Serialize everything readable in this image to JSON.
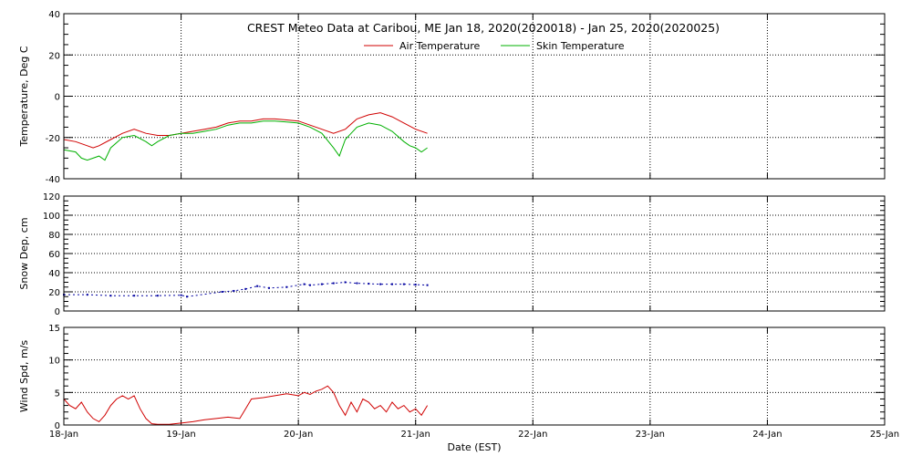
{
  "chart_data": {
    "type": "line",
    "title": "CREST Meteo Data at Caribou, ME   Jan 18, 2020(2020018) - Jan 25, 2020(2020025)",
    "xlabel": "Date (EST)",
    "x_ticks": [
      "18-Jan",
      "19-Jan",
      "20-Jan",
      "21-Jan",
      "22-Jan",
      "23-Jan",
      "24-Jan",
      "25-Jan"
    ],
    "xlim": [
      0,
      7
    ],
    "grid": true,
    "colors": {
      "air": "#d00000",
      "skin": "#00b000",
      "snow": "#0000a0",
      "wind": "#d00000"
    },
    "panels": [
      {
        "id": "temperature",
        "ylabel": "Temperature, Deg C",
        "ylim": [
          -40,
          40
        ],
        "y_ticks": [
          "-40",
          "-20",
          "0",
          "20",
          "40"
        ],
        "legend": [
          "Air Temperature",
          "Skin Temperature"
        ],
        "series": [
          {
            "name": "Air Temperature",
            "type": "line",
            "x": [
              0,
              0.1,
              0.2,
              0.25,
              0.3,
              0.4,
              0.5,
              0.6,
              0.7,
              0.8,
              0.9,
              1.0,
              1.1,
              1.2,
              1.3,
              1.4,
              1.5,
              1.6,
              1.7,
              1.8,
              1.9,
              2.0,
              2.1,
              2.2,
              2.3,
              2.4,
              2.5,
              2.6,
              2.7,
              2.8,
              2.9,
              3.0,
              3.1
            ],
            "y": [
              -21,
              -22,
              -24,
              -25,
              -24,
              -21,
              -18,
              -16,
              -18,
              -19,
              -19,
              -18,
              -17,
              -16,
              -15,
              -13,
              -12,
              -12,
              -11,
              -11,
              -11.5,
              -12,
              -14,
              -16,
              -18,
              -16,
              -11,
              -9,
              -8,
              -10,
              -13,
              -16,
              -18
            ]
          },
          {
            "name": "Skin Temperature",
            "type": "line",
            "x": [
              0,
              0.1,
              0.15,
              0.2,
              0.3,
              0.35,
              0.4,
              0.5,
              0.6,
              0.7,
              0.75,
              0.8,
              0.9,
              1.0,
              1.1,
              1.2,
              1.3,
              1.4,
              1.5,
              1.6,
              1.7,
              1.8,
              1.9,
              2.0,
              2.1,
              2.2,
              2.3,
              2.35,
              2.4,
              2.5,
              2.6,
              2.7,
              2.8,
              2.9,
              2.95,
              3.0,
              3.05,
              3.1
            ],
            "y": [
              -26,
              -27,
              -30,
              -31,
              -29,
              -31,
              -25,
              -20,
              -19,
              -22,
              -24,
              -22,
              -19,
              -18,
              -18,
              -17,
              -16,
              -14,
              -13,
              -13,
              -12,
              -12,
              -12.5,
              -13,
              -15,
              -18,
              -25,
              -29,
              -21,
              -15,
              -13,
              -14,
              -17,
              -22,
              -24,
              -25,
              -27,
              -25
            ]
          }
        ]
      },
      {
        "id": "snow-depth",
        "ylabel": "Snow Dep, cm",
        "ylim": [
          0,
          120
        ],
        "y_ticks": [
          "0",
          "20",
          "40",
          "60",
          "80",
          "100",
          "120"
        ],
        "series": [
          {
            "name": "Snow Depth",
            "type": "dotted",
            "x": [
              0,
              0.2,
              0.4,
              0.6,
              0.8,
              1.0,
              1.05,
              1.35,
              1.45,
              1.55,
              1.65,
              1.75,
              1.9,
              2.05,
              2.1,
              2.2,
              2.3,
              2.4,
              2.5,
              2.6,
              2.7,
              2.8,
              2.9,
              3.0,
              3.1
            ],
            "y": [
              17,
              17,
              16,
              16,
              16,
              16.5,
              15,
              20,
              21,
              23,
              26,
              24,
              25,
              28,
              27,
              28,
              29,
              30,
              29,
              28.5,
              28,
              28,
              28,
              27.5,
              27
            ]
          }
        ]
      },
      {
        "id": "wind-speed",
        "ylabel": "Wind Spd, m/s",
        "ylim": [
          0,
          15
        ],
        "y_ticks": [
          "0",
          "5",
          "10",
          "15"
        ],
        "series": [
          {
            "name": "Wind Speed",
            "type": "line",
            "x": [
              0,
              0.05,
              0.1,
              0.15,
              0.2,
              0.25,
              0.3,
              0.35,
              0.4,
              0.45,
              0.5,
              0.55,
              0.6,
              0.65,
              0.7,
              0.75,
              0.8,
              0.9,
              1.0,
              1.1,
              1.2,
              1.3,
              1.4,
              1.5,
              1.55,
              1.6,
              1.7,
              1.8,
              1.9,
              2.0,
              2.05,
              2.1,
              2.15,
              2.2,
              2.25,
              2.3,
              2.35,
              2.4,
              2.45,
              2.5,
              2.55,
              2.6,
              2.65,
              2.7,
              2.75,
              2.8,
              2.85,
              2.9,
              2.95,
              3.0,
              3.05,
              3.1
            ],
            "y": [
              4,
              3,
              2.5,
              3.5,
              2,
              1,
              0.5,
              1.5,
              3,
              4,
              4.5,
              4,
              4.5,
              2.5,
              1,
              0.2,
              0.1,
              0.1,
              0.3,
              0.5,
              0.8,
              1,
              1.2,
              1,
              2.5,
              4,
              4.2,
              4.5,
              4.8,
              4.5,
              5,
              4.7,
              5.2,
              5.5,
              6,
              5,
              3,
              1.5,
              3.5,
              2,
              4,
              3.5,
              2.5,
              3,
              2,
              3.5,
              2.5,
              3,
              2,
              2.5,
              1.5,
              3
            ]
          }
        ]
      }
    ]
  }
}
